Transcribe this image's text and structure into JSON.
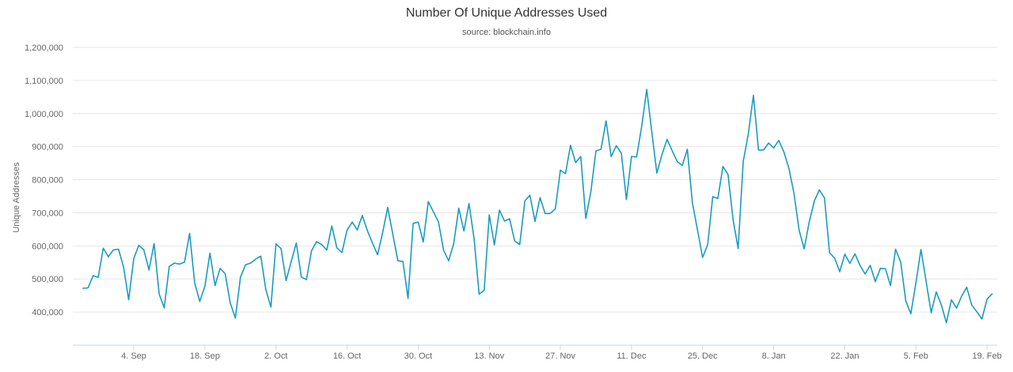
{
  "chart_data": {
    "type": "line",
    "title": "Number Of Unique Addresses Used",
    "subtitle": "source: blockchain.info",
    "ylabel": "Unique Addresses",
    "ylim": [
      300000,
      1200000
    ],
    "yticks": [
      {
        "value": 400000,
        "label": "400,000"
      },
      {
        "value": 500000,
        "label": "500,000"
      },
      {
        "value": 600000,
        "label": "600,000"
      },
      {
        "value": 700000,
        "label": "700,000"
      },
      {
        "value": 800000,
        "label": "800,000"
      },
      {
        "value": 900000,
        "label": "900,000"
      },
      {
        "value": 1000000,
        "label": "1,000,000"
      },
      {
        "value": 1100000,
        "label": "1,100,000"
      },
      {
        "value": 1200000,
        "label": "1,200,000"
      }
    ],
    "xlim": [
      "2017-08-23",
      "2018-02-21"
    ],
    "xticks": [
      {
        "date": "2017-09-04",
        "label": "4. Sep"
      },
      {
        "date": "2017-09-18",
        "label": "18. Sep"
      },
      {
        "date": "2017-10-02",
        "label": "2. Oct"
      },
      {
        "date": "2017-10-16",
        "label": "16. Oct"
      },
      {
        "date": "2017-10-30",
        "label": "30. Oct"
      },
      {
        "date": "2017-11-13",
        "label": "13. Nov"
      },
      {
        "date": "2017-11-27",
        "label": "27. Nov"
      },
      {
        "date": "2017-12-11",
        "label": "11. Dec"
      },
      {
        "date": "2017-12-25",
        "label": "25. Dec"
      },
      {
        "date": "2018-01-08",
        "label": "8. Jan"
      },
      {
        "date": "2018-01-22",
        "label": "22. Jan"
      },
      {
        "date": "2018-02-05",
        "label": "5. Feb"
      },
      {
        "date": "2018-02-19",
        "label": "19. Feb"
      }
    ],
    "grid": true,
    "color": "#1a9bbf",
    "series": [
      {
        "x": [
          "2017-08-25",
          "2017-08-26",
          "2017-08-27",
          "2017-08-28",
          "2017-08-29",
          "2017-08-30",
          "2017-08-31",
          "2017-09-01",
          "2017-09-02",
          "2017-09-03",
          "2017-09-04",
          "2017-09-05",
          "2017-09-06",
          "2017-09-07",
          "2017-09-08",
          "2017-09-09",
          "2017-09-10",
          "2017-09-11",
          "2017-09-12",
          "2017-09-13",
          "2017-09-14",
          "2017-09-15",
          "2017-09-16",
          "2017-09-17",
          "2017-09-18",
          "2017-09-19",
          "2017-09-20",
          "2017-09-21",
          "2017-09-22",
          "2017-09-23",
          "2017-09-24",
          "2017-09-25",
          "2017-09-26",
          "2017-09-27",
          "2017-09-28",
          "2017-09-29",
          "2017-09-30",
          "2017-10-01",
          "2017-10-02",
          "2017-10-03",
          "2017-10-04",
          "2017-10-05",
          "2017-10-06",
          "2017-10-07",
          "2017-10-08",
          "2017-10-09",
          "2017-10-10",
          "2017-10-11",
          "2017-10-12",
          "2017-10-13",
          "2017-10-14",
          "2017-10-15",
          "2017-10-16",
          "2017-10-17",
          "2017-10-18",
          "2017-10-19",
          "2017-10-20",
          "2017-10-21",
          "2017-10-22",
          "2017-10-23",
          "2017-10-24",
          "2017-10-25",
          "2017-10-26",
          "2017-10-27",
          "2017-10-28",
          "2017-10-29",
          "2017-10-30",
          "2017-10-31",
          "2017-11-01",
          "2017-11-02",
          "2017-11-03",
          "2017-11-04",
          "2017-11-05",
          "2017-11-06",
          "2017-11-07",
          "2017-11-08",
          "2017-11-09",
          "2017-11-10",
          "2017-11-11",
          "2017-11-12",
          "2017-11-13",
          "2017-11-14",
          "2017-11-15",
          "2017-11-16",
          "2017-11-17",
          "2017-11-18",
          "2017-11-19",
          "2017-11-20",
          "2017-11-21",
          "2017-11-22",
          "2017-11-23",
          "2017-11-24",
          "2017-11-25",
          "2017-11-26",
          "2017-11-27",
          "2017-11-28",
          "2017-11-29",
          "2017-11-30",
          "2017-12-01",
          "2017-12-02",
          "2017-12-03",
          "2017-12-04",
          "2017-12-05",
          "2017-12-06",
          "2017-12-07",
          "2017-12-08",
          "2017-12-09",
          "2017-12-10",
          "2017-12-11",
          "2017-12-12",
          "2017-12-13",
          "2017-12-14",
          "2017-12-15",
          "2017-12-16",
          "2017-12-17",
          "2017-12-18",
          "2017-12-19",
          "2017-12-20",
          "2017-12-21",
          "2017-12-22",
          "2017-12-23",
          "2017-12-24",
          "2017-12-25",
          "2017-12-26",
          "2017-12-27",
          "2017-12-28",
          "2017-12-29",
          "2017-12-30",
          "2017-12-31",
          "2018-01-01",
          "2018-01-02",
          "2018-01-03",
          "2018-01-04",
          "2018-01-05",
          "2018-01-06",
          "2018-01-07",
          "2018-01-08",
          "2018-01-09",
          "2018-01-10",
          "2018-01-11",
          "2018-01-12",
          "2018-01-13",
          "2018-01-14",
          "2018-01-15",
          "2018-01-16",
          "2018-01-17",
          "2018-01-18",
          "2018-01-19",
          "2018-01-20",
          "2018-01-21",
          "2018-01-22",
          "2018-01-23",
          "2018-01-24",
          "2018-01-25",
          "2018-01-26",
          "2018-01-27",
          "2018-01-28",
          "2018-01-29",
          "2018-01-30",
          "2018-01-31",
          "2018-02-01",
          "2018-02-02",
          "2018-02-03",
          "2018-02-04",
          "2018-02-05",
          "2018-02-06",
          "2018-02-07",
          "2018-02-08",
          "2018-02-09",
          "2018-02-10",
          "2018-02-11",
          "2018-02-12",
          "2018-02-13",
          "2018-02-14",
          "2018-02-15",
          "2018-02-16",
          "2018-02-17",
          "2018-02-18",
          "2018-02-19",
          "2018-02-20"
        ],
        "values": [
          472000,
          473000,
          510000,
          505000,
          593000,
          567000,
          588000,
          590000,
          535000,
          437000,
          562000,
          602000,
          588000,
          527000,
          607000,
          455000,
          413000,
          538000,
          548000,
          545000,
          551000,
          638000,
          488000,
          432000,
          478000,
          578000,
          480000,
          532000,
          516000,
          428000,
          382000,
          505000,
          543000,
          548000,
          560000,
          569000,
          468000,
          415000,
          606000,
          592000,
          495000,
          553000,
          609000,
          506000,
          498000,
          585000,
          613000,
          604000,
          588000,
          660000,
          594000,
          580000,
          647000,
          672000,
          648000,
          692000,
          646000,
          609000,
          573000,
          640000,
          716000,
          636000,
          555000,
          553000,
          441000,
          668000,
          672000,
          612000,
          734000,
          703000,
          672000,
          587000,
          555000,
          607000,
          714000,
          645000,
          728000,
          623000,
          454000,
          466000,
          694000,
          603000,
          708000,
          675000,
          682000,
          615000,
          604000,
          736000,
          753000,
          674000,
          746000,
          698000,
          698000,
          712000,
          829000,
          818000,
          904000,
          852000,
          870000,
          683000,
          764000,
          887000,
          892000,
          978000,
          870000,
          903000,
          880000,
          740000,
          870000,
          869000,
          961000,
          1073000,
          944000,
          820000,
          876000,
          922000,
          888000,
          855000,
          843000,
          892000,
          730000,
          647000,
          565000,
          604000,
          749000,
          743000,
          840000,
          816000,
          679000,
          592000,
          855000,
          938000,
          1055000,
          890000,
          890000,
          911000,
          896000,
          919000,
          884000,
          834000,
          758000,
          648000,
          591000,
          672000,
          736000,
          769000,
          745000,
          579000,
          563000,
          522000,
          575000,
          547000,
          576000,
          541000,
          515000,
          541000,
          492000,
          532000,
          531000,
          480000,
          590000,
          551000,
          434000,
          395000,
          488000,
          589000,
          493000,
          398000,
          461000,
          422000,
          368000,
          437000,
          412000,
          448000,
          475000,
          421000,
          401000,
          379000,
          439000,
          455000
        ]
      }
    ]
  }
}
